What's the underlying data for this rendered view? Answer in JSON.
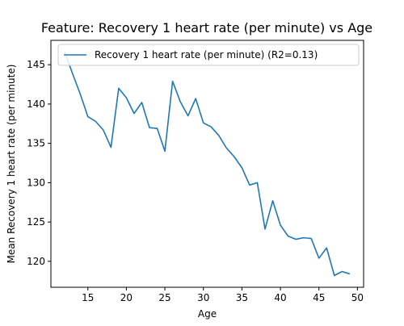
{
  "chart_data": {
    "type": "line",
    "title": "Feature: Recovery 1 heart rate (per minute) vs Age",
    "xlabel": "Age",
    "ylabel": "Mean Recovery 1 heart rate (per minute)",
    "xlim": [
      10.2,
      50.8
    ],
    "ylim": [
      116.7,
      148.1
    ],
    "xticks": [
      15,
      20,
      25,
      30,
      35,
      40,
      45,
      50
    ],
    "yticks": [
      120,
      125,
      130,
      135,
      140,
      145
    ],
    "grid": false,
    "legend_placement": "upper right",
    "series": [
      {
        "name": "Recovery 1 heart rate (per minute) (R2=0.13)",
        "color": "#1f77b4",
        "x": [
          12,
          13,
          14,
          15,
          16,
          17,
          18,
          19,
          20,
          21,
          22,
          23,
          24,
          25,
          26,
          27,
          28,
          29,
          30,
          31,
          32,
          33,
          34,
          35,
          36,
          37,
          38,
          39,
          40,
          41,
          42,
          43,
          44,
          45,
          46,
          47,
          48,
          49
        ],
        "values": [
          146.6,
          143.9,
          141.3,
          138.4,
          137.8,
          136.7,
          134.5,
          142.0,
          140.8,
          138.8,
          140.2,
          137.0,
          136.9,
          134.0,
          142.9,
          140.3,
          138.5,
          140.7,
          137.6,
          137.1,
          136.0,
          134.4,
          133.3,
          131.9,
          129.7,
          130.0,
          124.1,
          127.7,
          124.6,
          123.2,
          122.8,
          123.0,
          122.9,
          120.4,
          121.7,
          118.2,
          118.7,
          118.4
        ]
      }
    ]
  }
}
